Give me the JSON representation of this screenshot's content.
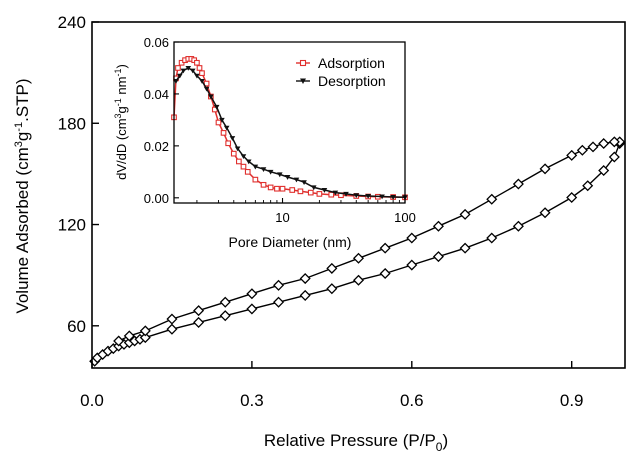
{
  "chart_data": [
    {
      "type": "line",
      "title": "",
      "xlabel": "Relative Pressure (P/P",
      "xlabel_sub": "0",
      "xlabel_end": ")",
      "ylabel": "Volume Adsorbed (cm",
      "ylabel_parts": [
        "Volume Adsorbed (cm",
        "3",
        "g",
        "-1",
        ".STP)"
      ],
      "xlim": [
        0.0,
        1.0
      ],
      "ylim": [
        35,
        240
      ],
      "xticks": [
        0.0,
        0.3,
        0.6,
        0.9
      ],
      "xtick_labels": [
        "0.0",
        "0.3",
        "0.6",
        "0.9"
      ],
      "yticks": [
        60,
        120,
        180,
        240
      ],
      "ytick_labels": [
        "60",
        "120",
        "180",
        "240"
      ],
      "grid": false,
      "marker": "open-diamond",
      "series": [
        {
          "role": "adsorption branch",
          "x": [
            0.005,
            0.01,
            0.02,
            0.03,
            0.04,
            0.05,
            0.06,
            0.07,
            0.08,
            0.09,
            0.1,
            0.15,
            0.2,
            0.25,
            0.3,
            0.35,
            0.4,
            0.45,
            0.5,
            0.55,
            0.6,
            0.65,
            0.7,
            0.75,
            0.8,
            0.85,
            0.9,
            0.93,
            0.96,
            0.98,
            0.99
          ],
          "y": [
            39,
            41,
            43,
            45,
            46.5,
            48,
            49,
            50,
            51,
            52,
            53,
            58,
            62,
            66,
            70,
            74,
            78,
            82,
            87,
            91,
            96,
            101,
            106,
            112,
            119,
            127,
            136,
            143,
            152,
            160,
            168
          ]
        },
        {
          "role": "desorption branch",
          "x": [
            0.99,
            0.98,
            0.96,
            0.94,
            0.92,
            0.9,
            0.85,
            0.8,
            0.75,
            0.7,
            0.65,
            0.6,
            0.55,
            0.5,
            0.45,
            0.4,
            0.35,
            0.3,
            0.25,
            0.2,
            0.15,
            0.1,
            0.07,
            0.05
          ],
          "y": [
            169,
            169,
            168,
            166,
            164,
            161,
            153,
            144,
            135,
            126,
            119,
            112,
            106,
            100,
            94,
            88,
            84,
            79,
            74,
            69,
            64,
            57,
            54,
            51
          ]
        }
      ]
    },
    {
      "type": "line",
      "title": "",
      "xlabel": "Pore Diameter (nm)",
      "ylabel": "dV/dD (cm",
      "ylabel_parts": [
        "dV/dD (cm",
        "3",
        "g",
        "-1",
        " nm",
        "-1",
        ")"
      ],
      "xscale": "log",
      "xlim": [
        1.3,
        100
      ],
      "ylim": [
        -0.002,
        0.06
      ],
      "xticks": [
        10,
        100
      ],
      "xtick_labels": [
        "10",
        "100"
      ],
      "yticks": [
        0.0,
        0.02,
        0.04,
        0.06
      ],
      "ytick_labels": [
        "0.00",
        "0.02",
        "0.04",
        "0.06"
      ],
      "legend_position": "top-right",
      "grid": false,
      "series": [
        {
          "name": "Adsorption",
          "color": "#e0302e",
          "marker": "open-square",
          "x": [
            1.3,
            1.35,
            1.4,
            1.5,
            1.6,
            1.7,
            1.8,
            1.9,
            2.0,
            2.1,
            2.2,
            2.4,
            2.6,
            2.8,
            3.0,
            3.3,
            3.6,
            4.0,
            4.4,
            4.8,
            5.2,
            6.0,
            7.0,
            8.0,
            9.0,
            10,
            12,
            14,
            17,
            20,
            25,
            30,
            40,
            50,
            60,
            80,
            100
          ],
          "y": [
            0.031,
            0.046,
            0.05,
            0.052,
            0.053,
            0.0535,
            0.0535,
            0.053,
            0.052,
            0.05,
            0.048,
            0.044,
            0.039,
            0.034,
            0.029,
            0.025,
            0.021,
            0.017,
            0.014,
            0.012,
            0.01,
            0.007,
            0.005,
            0.004,
            0.0035,
            0.0035,
            0.003,
            0.0025,
            0.002,
            0.0015,
            0.0012,
            0.001,
            0.0007,
            0.0005,
            0.0004,
            0.0003,
            0.0002
          ]
        },
        {
          "name": "Desorption",
          "color": "#111111",
          "marker": "filled-triangle-down",
          "x": [
            1.35,
            1.45,
            1.55,
            1.7,
            1.85,
            2.0,
            2.2,
            2.4,
            2.6,
            2.9,
            3.2,
            3.5,
            3.9,
            4.3,
            4.8,
            5.3,
            6.0,
            7.0,
            8.0,
            9.5,
            11,
            13,
            15,
            18,
            22,
            27,
            33,
            40,
            50,
            65,
            80,
            100
          ],
          "y": [
            0.045,
            0.047,
            0.049,
            0.05,
            0.049,
            0.047,
            0.045,
            0.042,
            0.039,
            0.035,
            0.03,
            0.027,
            0.023,
            0.019,
            0.016,
            0.014,
            0.012,
            0.011,
            0.01,
            0.009,
            0.008,
            0.007,
            0.006,
            0.004,
            0.003,
            0.002,
            0.0015,
            0.001,
            0.0007,
            0.0005,
            0.0003,
            0.0002
          ]
        }
      ]
    }
  ]
}
